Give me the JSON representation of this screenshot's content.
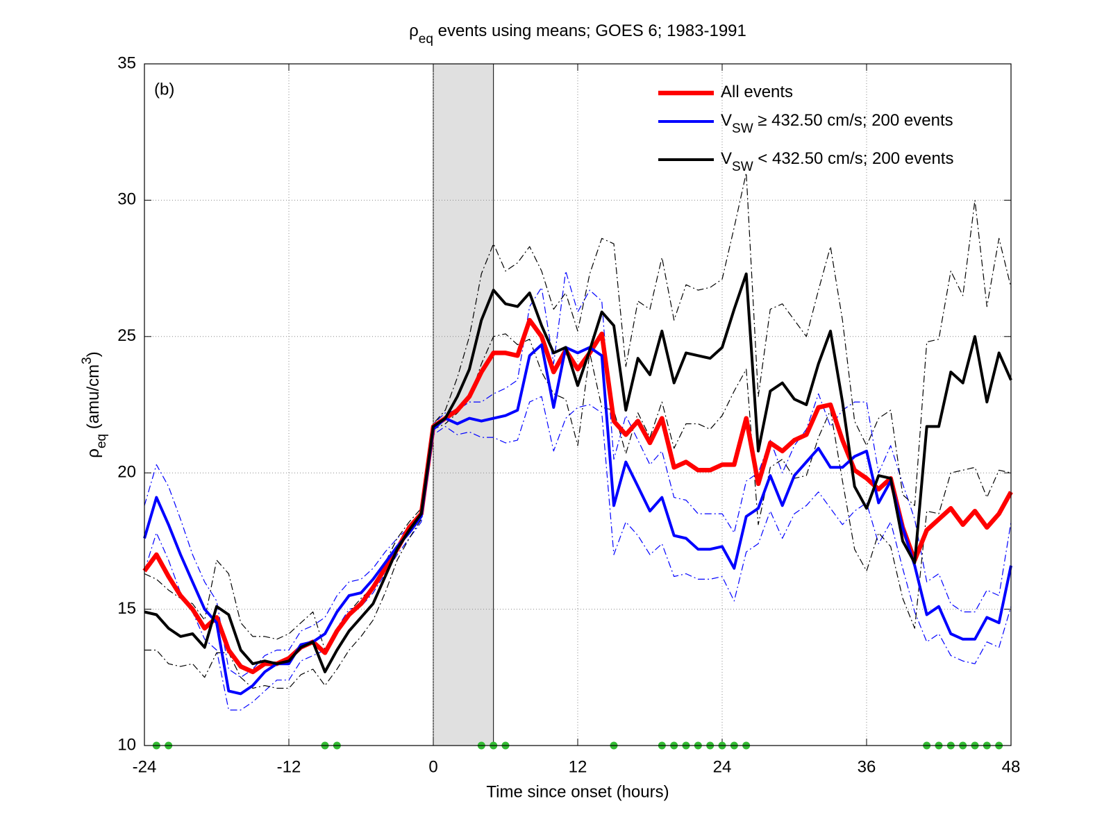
{
  "chart_data": {
    "type": "line",
    "title": [
      "ρ",
      "eq",
      " events using means; GOES 6; 1983-1991"
    ],
    "x_label": "Time since onset (hours)",
    "y_label": [
      "ρ",
      "eq",
      " (amu/cm",
      "3",
      ")"
    ],
    "annotation": "(b)",
    "xlim": [
      -24,
      48
    ],
    "xticks": [
      -24,
      -12,
      0,
      12,
      24,
      36,
      48
    ],
    "ylim": [
      10,
      35
    ],
    "yticks": [
      10,
      15,
      20,
      25,
      30,
      35
    ],
    "grid": true,
    "legend": "upper right",
    "shade": {
      "x": [
        0,
        5
      ],
      "color": "#e0e0e0"
    },
    "x": [
      -24,
      -23,
      -22,
      -21,
      -20,
      -19,
      -18,
      -17,
      -16,
      -15,
      -14,
      -13,
      -12,
      -11,
      -10,
      -9,
      -8,
      -7,
      -6,
      -5,
      -4,
      -3,
      -2,
      -1,
      0,
      1,
      2,
      3,
      4,
      5,
      6,
      7,
      8,
      9,
      10,
      11,
      12,
      13,
      14,
      15,
      16,
      17,
      18,
      19,
      20,
      21,
      22,
      23,
      24,
      25,
      26,
      27,
      28,
      29,
      30,
      31,
      32,
      33,
      34,
      35,
      36,
      37,
      38,
      39,
      40,
      41,
      42,
      43,
      44,
      45,
      46,
      47,
      48
    ],
    "series": [
      {
        "name": [
          "All events"
        ],
        "color": "#ff0000",
        "style": "solid",
        "values": [
          16.4,
          17.0,
          16.2,
          15.5,
          15.0,
          14.3,
          14.7,
          13.5,
          12.9,
          12.7,
          13.0,
          13.0,
          13.2,
          13.6,
          13.8,
          13.4,
          14.2,
          14.8,
          15.2,
          15.8,
          16.5,
          17.2,
          18.0,
          18.5,
          21.7,
          22.0,
          22.3,
          22.8,
          23.7,
          24.4,
          24.4,
          24.3,
          25.6,
          25.0,
          23.7,
          24.5,
          23.8,
          24.4,
          25.1,
          21.9,
          21.4,
          21.9,
          21.1,
          22.0,
          20.2,
          20.4,
          20.1,
          20.1,
          20.3,
          20.3,
          22.0,
          19.6,
          21.1,
          20.8,
          21.2,
          21.4,
          22.4,
          22.5,
          21.2,
          20.1,
          19.8,
          19.4,
          19.8,
          18.0,
          16.8,
          17.9,
          18.3,
          18.7,
          18.1,
          18.6,
          18.0,
          18.5,
          19.3
        ]
      },
      {
        "name": [
          "V",
          "SW",
          " ≥ 432.50 cm/s; 200 events"
        ],
        "color": "#0000ff",
        "style": "solid",
        "values": [
          17.6,
          19.1,
          18.1,
          17.0,
          16.0,
          15.0,
          14.5,
          12.0,
          11.9,
          12.2,
          12.7,
          13.0,
          13.0,
          13.7,
          13.8,
          14.1,
          14.9,
          15.5,
          15.6,
          16.1,
          16.7,
          17.3,
          17.8,
          18.4,
          21.6,
          22.0,
          21.8,
          22.0,
          21.9,
          22.0,
          22.1,
          22.3,
          24.3,
          24.7,
          22.4,
          24.6,
          24.4,
          24.6,
          24.3,
          18.8,
          20.4,
          19.5,
          18.6,
          19.1,
          17.7,
          17.6,
          17.2,
          17.2,
          17.3,
          16.5,
          18.4,
          18.7,
          19.9,
          18.8,
          19.9,
          20.4,
          20.9,
          20.2,
          20.2,
          20.6,
          20.8,
          18.9,
          19.7,
          18.0,
          16.6,
          14.8,
          15.1,
          14.1,
          13.9,
          13.9,
          14.7,
          14.5,
          16.6
        ]
      },
      {
        "name": [
          "V",
          "SW",
          " < 432.50 cm/s; 200 events"
        ],
        "color": "#000000",
        "style": "solid",
        "values": [
          14.9,
          14.8,
          14.3,
          14.0,
          14.1,
          13.6,
          15.1,
          14.8,
          13.5,
          13.0,
          13.1,
          13.0,
          13.1,
          13.6,
          13.8,
          12.7,
          13.5,
          14.2,
          14.7,
          15.2,
          16.2,
          17.2,
          17.9,
          18.5,
          21.7,
          22.0,
          22.8,
          23.8,
          25.6,
          26.7,
          26.2,
          26.1,
          26.6,
          25.4,
          24.4,
          24.6,
          23.2,
          24.5,
          25.9,
          25.4,
          22.3,
          24.2,
          23.6,
          25.2,
          23.3,
          24.4,
          24.3,
          24.2,
          24.6,
          26.0,
          27.3,
          20.8,
          23.0,
          23.3,
          22.7,
          22.5,
          24.0,
          25.2,
          22.6,
          19.5,
          18.7,
          19.9,
          19.8,
          17.5,
          16.7,
          21.7,
          21.7,
          23.7,
          23.3,
          25.0,
          22.6,
          24.4,
          23.4
        ]
      },
      {
        "color": "#0000ff",
        "style": "dash-dot",
        "values": [
          18.8,
          20.3,
          19.5,
          18.3,
          17.0,
          16.0,
          15.3,
          12.8,
          12.5,
          12.8,
          13.3,
          13.5,
          13.5,
          14.2,
          14.4,
          14.7,
          15.5,
          16.0,
          16.1,
          16.5,
          17.1,
          17.6,
          18.0,
          18.6,
          21.8,
          22.2,
          22.3,
          22.6,
          22.6,
          22.9,
          23.1,
          23.4,
          26.1,
          26.8,
          24.0,
          27.4,
          25.9,
          26.7,
          26.3,
          20.5,
          22.1,
          21.2,
          20.3,
          20.8,
          19.1,
          19.0,
          18.5,
          18.5,
          18.5,
          17.8,
          19.7,
          20.0,
          21.2,
          20.0,
          21.0,
          21.6,
          22.9,
          21.7,
          22.3,
          22.6,
          22.6,
          20.0,
          21.0,
          19.6,
          18.3,
          16.0,
          16.3,
          15.2,
          14.9,
          14.9,
          15.7,
          15.5,
          18.2
        ]
      },
      {
        "color": "#0000ff",
        "style": "dash-dot",
        "values": [
          16.4,
          17.8,
          16.8,
          15.6,
          14.9,
          13.9,
          13.5,
          11.3,
          11.3,
          11.6,
          12.0,
          12.4,
          12.4,
          13.1,
          13.3,
          13.5,
          14.3,
          15.0,
          15.1,
          15.6,
          16.3,
          17.0,
          17.6,
          18.2,
          21.4,
          21.7,
          21.4,
          21.5,
          21.3,
          21.3,
          21.1,
          21.2,
          22.6,
          22.8,
          20.8,
          22.0,
          22.4,
          22.5,
          22.2,
          17.0,
          18.2,
          17.7,
          17.0,
          17.4,
          16.2,
          16.3,
          16.1,
          16.1,
          16.2,
          15.3,
          17.1,
          17.4,
          18.6,
          17.6,
          18.5,
          18.8,
          19.3,
          18.7,
          18.1,
          18.6,
          18.9,
          17.4,
          18.2,
          16.5,
          14.9,
          13.8,
          14.1,
          13.3,
          13.1,
          13.0,
          13.8,
          13.6,
          15.1
        ]
      },
      {
        "color": "#000000",
        "style": "dash-dot",
        "values": [
          16.3,
          16.1,
          15.7,
          15.4,
          15.2,
          14.6,
          16.8,
          16.3,
          14.5,
          14.0,
          14.0,
          13.9,
          14.1,
          14.5,
          14.9,
          13.5,
          14.3,
          14.9,
          15.4,
          15.8,
          16.7,
          17.6,
          18.2,
          18.7,
          21.8,
          22.3,
          23.5,
          25.0,
          27.3,
          28.4,
          27.4,
          27.7,
          28.3,
          27.4,
          26.0,
          26.6,
          25.2,
          27.3,
          28.6,
          28.4,
          23.9,
          26.3,
          26.0,
          27.9,
          25.6,
          26.9,
          26.7,
          26.8,
          27.1,
          29.0,
          31.0,
          22.8,
          26.0,
          26.2,
          25.6,
          25.0,
          26.7,
          28.3,
          25.6,
          21.9,
          21.0,
          22.0,
          22.3,
          19.2,
          18.8,
          24.8,
          24.9,
          27.4,
          26.5,
          30.0,
          26.1,
          28.6,
          26.8
        ]
      },
      {
        "color": "#000000",
        "style": "dash-dot",
        "values": [
          13.5,
          13.5,
          13.0,
          12.9,
          13.0,
          12.5,
          13.4,
          13.4,
          12.5,
          12.1,
          12.2,
          12.1,
          12.1,
          12.6,
          12.8,
          12.2,
          12.8,
          13.5,
          14.0,
          14.6,
          15.6,
          16.8,
          17.6,
          18.3,
          21.6,
          21.8,
          22.2,
          22.7,
          24.0,
          25.0,
          25.1,
          24.7,
          24.9,
          23.7,
          22.9,
          22.7,
          21.0,
          24.4,
          22.4,
          22.3,
          20.7,
          22.2,
          21.3,
          22.6,
          20.9,
          21.8,
          21.8,
          21.6,
          22.1,
          23.0,
          23.8,
          18.1,
          20.2,
          20.5,
          19.8,
          19.9,
          21.3,
          22.3,
          19.7,
          17.2,
          16.4,
          17.8,
          17.3,
          15.4,
          14.3,
          18.6,
          18.5,
          20.0,
          20.1,
          20.2,
          19.1,
          20.1,
          20.0
        ]
      }
    ],
    "markers": {
      "color": "#33bb33",
      "x": [
        -23,
        -22,
        -9,
        -8,
        4,
        5,
        6,
        15,
        19,
        20,
        21,
        22,
        23,
        24,
        25,
        26,
        41,
        42,
        43,
        44,
        45,
        46,
        47
      ]
    }
  }
}
